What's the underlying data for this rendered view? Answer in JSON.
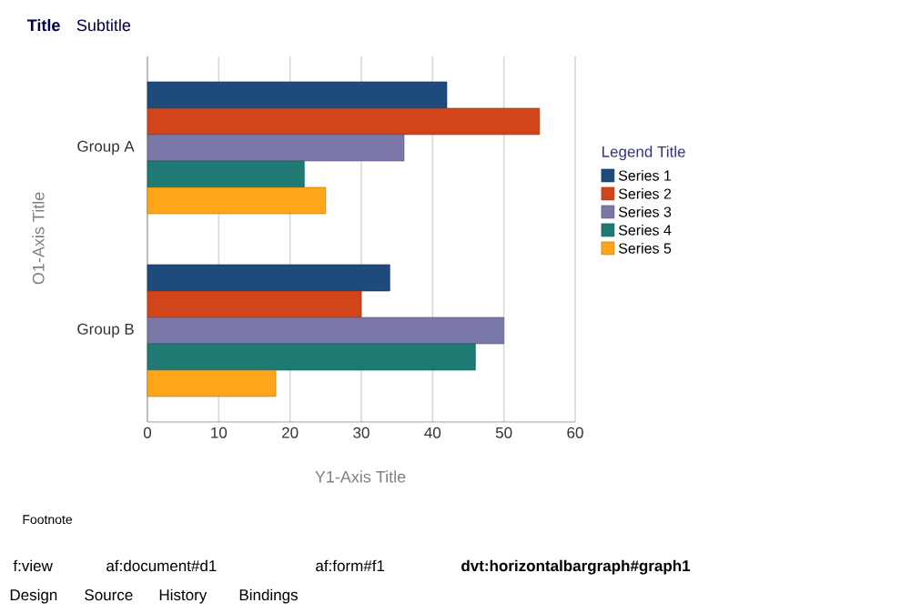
{
  "chart_data": {
    "type": "bar",
    "orientation": "horizontal",
    "title": "Title",
    "subtitle": "Subtitle",
    "xlabel": "Y1-Axis Title",
    "ylabel": "O1-Axis Title",
    "legend_title": "Legend Title",
    "legend": "right",
    "grid": "x",
    "categories": [
      "Group A",
      "Group B"
    ],
    "series": [
      {
        "name": "Series 1",
        "color": "#1f4a7c",
        "values": [
          42,
          34
        ]
      },
      {
        "name": "Series 2",
        "color": "#d2451a",
        "values": [
          55,
          30
        ]
      },
      {
        "name": "Series 3",
        "color": "#7a78a8",
        "values": [
          36,
          50
        ]
      },
      {
        "name": "Series 4",
        "color": "#1e7a72",
        "values": [
          22,
          46
        ]
      },
      {
        "name": "Series 5",
        "color": "#ffa51a",
        "values": [
          25,
          18
        ]
      }
    ],
    "xlim": [
      0,
      60
    ],
    "xticks": [
      0,
      10,
      20,
      30,
      40,
      50,
      60
    ],
    "annotations": [
      "Footnote",
      "f:view",
      "af:document#d1",
      "af:form#f1",
      "dvt:horizontalbargraph#graph1",
      "Design",
      "Source",
      "History",
      "Bindings"
    ]
  }
}
